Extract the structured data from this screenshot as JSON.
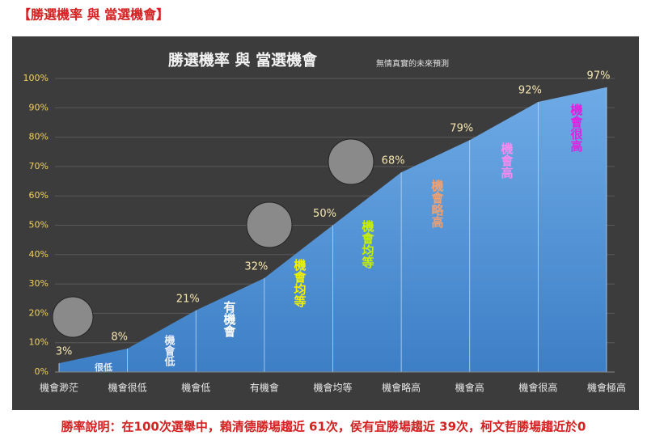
{
  "header": "【勝選機率 與 當選機會】",
  "chart_data": {
    "type": "area",
    "title": "勝選機率 與 當選機會",
    "subtitle": "無情真實的未來預測",
    "categories": [
      "機會渺茫",
      "機會很低",
      "機會低",
      "有機會",
      "機會均等",
      "機會略高",
      "機會高",
      "機會很高",
      "機會極高"
    ],
    "values": [
      3,
      8,
      21,
      32,
      50,
      68,
      79,
      92,
      97
    ],
    "value_labels": [
      "3%",
      "8%",
      "21%",
      "32%",
      "50%",
      "68%",
      "79%",
      "92%",
      "97%"
    ],
    "color": "#4f8fd6",
    "ylim": [
      0,
      100
    ],
    "yticks": [
      {
        "value": 0,
        "label": "0%"
      },
      {
        "value": 10,
        "label": "10%"
      },
      {
        "value": 20,
        "label": "20%"
      },
      {
        "value": 30,
        "label": "30%"
      },
      {
        "value": 40,
        "label": "40%"
      },
      {
        "value": 50,
        "label": "50%"
      },
      {
        "value": 60,
        "label": "60%"
      },
      {
        "value": 70,
        "label": "70%"
      },
      {
        "value": 80,
        "label": "80%"
      },
      {
        "value": 90,
        "label": "90%"
      },
      {
        "value": 100,
        "label": "100%"
      }
    ],
    "grid": true,
    "annotations": [
      {
        "text": "很低",
        "color": "#dde8f8"
      },
      {
        "text": "機會低",
        "color": "#e8eef8"
      },
      {
        "text": "有機會",
        "color": "#ffffff"
      },
      {
        "text": "機會均等",
        "color": "#f2f000"
      },
      {
        "text": "機會均等",
        "color": "#c8f000"
      },
      {
        "text": "機會略高",
        "color": "#f0a070"
      },
      {
        "text": "機會高",
        "color": "#f48cf0"
      },
      {
        "text": "機會很高",
        "color": "#e020e0"
      }
    ]
  },
  "footer": "勝率說明：在100次選舉中，賴清德勝場趨近 61次，侯有宜勝場趨近 39次，柯文哲勝場趨近於0"
}
